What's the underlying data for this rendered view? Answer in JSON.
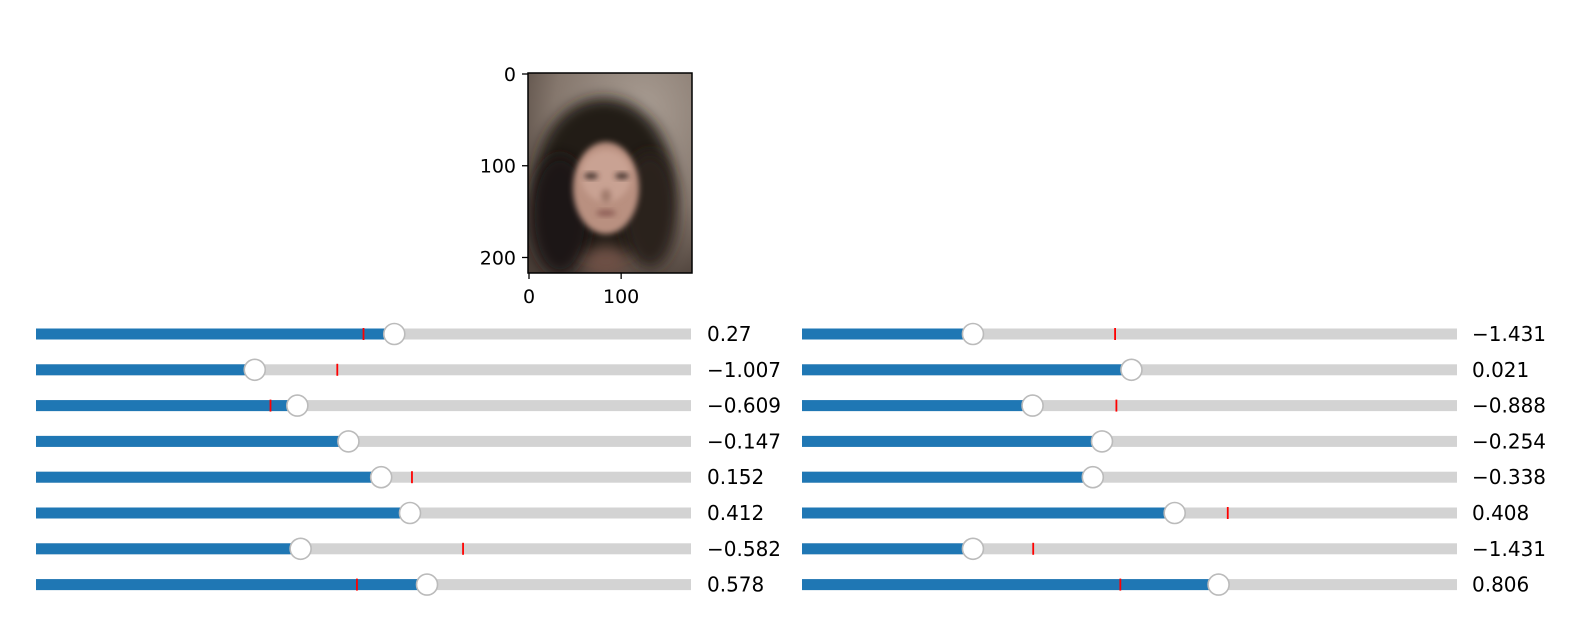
{
  "image_panel": {
    "image_name": "face-reconstruction",
    "y_ticks": [
      {
        "label": "0",
        "value": 0
      },
      {
        "label": "100",
        "value": 100
      },
      {
        "label": "200",
        "value": 200
      }
    ],
    "x_ticks": [
      {
        "label": "0",
        "value": 0
      },
      {
        "label": "100",
        "value": 100
      }
    ],
    "x_range": [
      0,
      178
    ],
    "y_range": [
      0,
      218
    ]
  },
  "sliders": {
    "left": [
      {
        "label": "0.27",
        "fill": 0.547,
        "marker": 0.5
      },
      {
        "label": "−1.007",
        "fill": 0.334,
        "marker": 0.46
      },
      {
        "label": "−0.609",
        "fill": 0.399,
        "marker": 0.358
      },
      {
        "label": "−0.147",
        "fill": 0.477,
        "marker": null
      },
      {
        "label": "0.152",
        "fill": 0.527,
        "marker": 0.574
      },
      {
        "label": "0.412",
        "fill": 0.571,
        "marker": null
      },
      {
        "label": "−0.582",
        "fill": 0.404,
        "marker": 0.652
      },
      {
        "label": "0.578",
        "fill": 0.597,
        "marker": 0.49
      }
    ],
    "right": [
      {
        "label": "−1.431",
        "fill": 0.261,
        "marker": 0.478
      },
      {
        "label": "0.021",
        "fill": 0.503,
        "marker": null
      },
      {
        "label": "−0.888",
        "fill": 0.352,
        "marker": 0.48
      },
      {
        "label": "−0.254",
        "fill": 0.458,
        "marker": null
      },
      {
        "label": "−0.338",
        "fill": 0.444,
        "marker": null
      },
      {
        "label": "0.408",
        "fill": 0.569,
        "marker": 0.65
      },
      {
        "label": "−1.431",
        "fill": 0.261,
        "marker": 0.353
      },
      {
        "label": "0.806",
        "fill": 0.636,
        "marker": 0.486
      }
    ]
  },
  "colors": {
    "fill": "#1f77b4",
    "track": "#d3d3d3",
    "marker": "#ff0000",
    "handle_fill": "#ffffff",
    "handle_stroke": "#bbbbbb"
  }
}
